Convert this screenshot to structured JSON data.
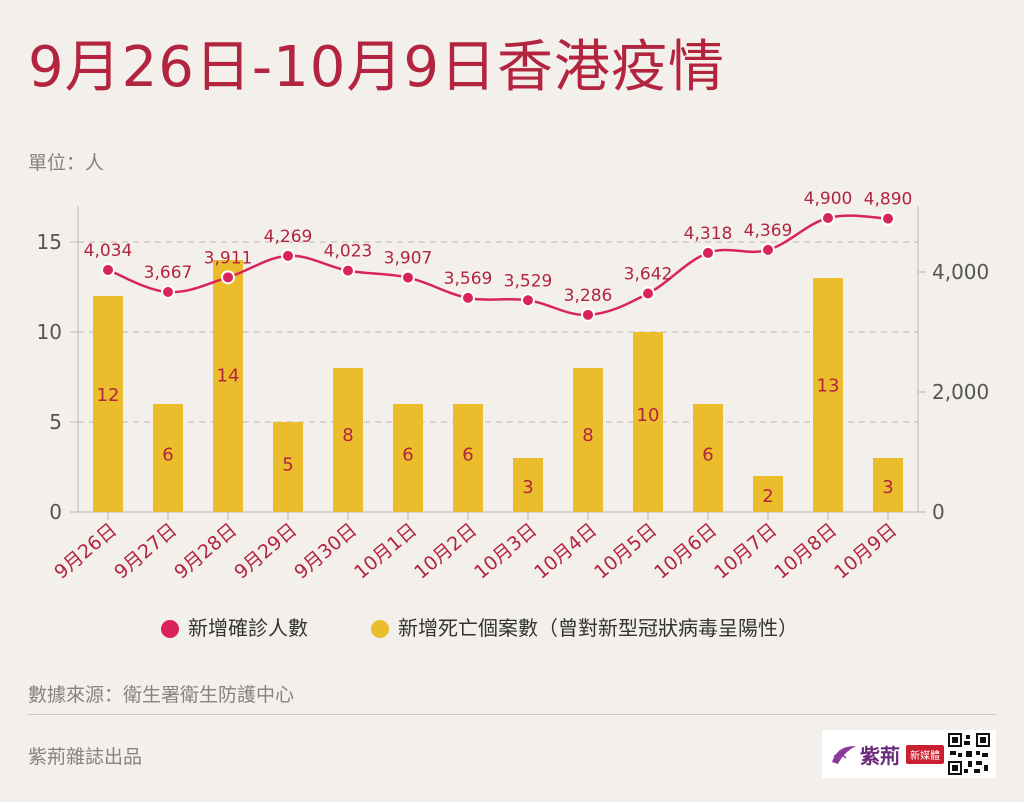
{
  "title": "9月26日-10月9日香港疫情",
  "unit": "單位：人",
  "source": "數據來源：衛生署衛生防護中心",
  "publisher": "紫荊雜誌出品",
  "logo": {
    "name": "紫荊",
    "badge": "新媒體"
  },
  "colors": {
    "title": "#b3243f",
    "line": "#d9245a",
    "bar": "#ebbd2c",
    "label": "#b3243f",
    "axis": "#555555"
  },
  "chart_data": {
    "type": "bar",
    "categories": [
      "9月26日",
      "9月27日",
      "9月28日",
      "9月29日",
      "9月30日",
      "10月1日",
      "10月2日",
      "10月3日",
      "10月4日",
      "10月5日",
      "10月6日",
      "10月7日",
      "10月8日",
      "10月9日"
    ],
    "series": [
      {
        "name": "新增確診人數",
        "type": "line",
        "axis": "right",
        "values": [
          4034,
          3667,
          3911,
          4269,
          4023,
          3907,
          3569,
          3529,
          3286,
          3642,
          4318,
          4369,
          4900,
          4890
        ],
        "labels": [
          "4,034",
          "3,667",
          "3,911",
          "4,269",
          "4,023",
          "3,907",
          "3,569",
          "3,529",
          "3,286",
          "3,642",
          "4,318",
          "4,369",
          "4,900",
          "4,890"
        ]
      },
      {
        "name": "新增死亡個案數（曾對新型冠狀病毒呈陽性）",
        "type": "bar",
        "axis": "left",
        "values": [
          12,
          6,
          14,
          5,
          8,
          6,
          6,
          3,
          8,
          10,
          6,
          2,
          13,
          3
        ]
      }
    ],
    "left_axis": {
      "ylim": [
        0,
        17
      ],
      "ticks": [
        0,
        5,
        10,
        15
      ],
      "tick_labels": [
        "0",
        "5",
        "10",
        "15"
      ]
    },
    "right_axis": {
      "ylim": [
        0,
        5100
      ],
      "ticks": [
        0,
        2000,
        4000
      ],
      "tick_labels": [
        "0",
        "2,000",
        "4,000"
      ]
    },
    "grid": true,
    "legend": "bottom"
  }
}
